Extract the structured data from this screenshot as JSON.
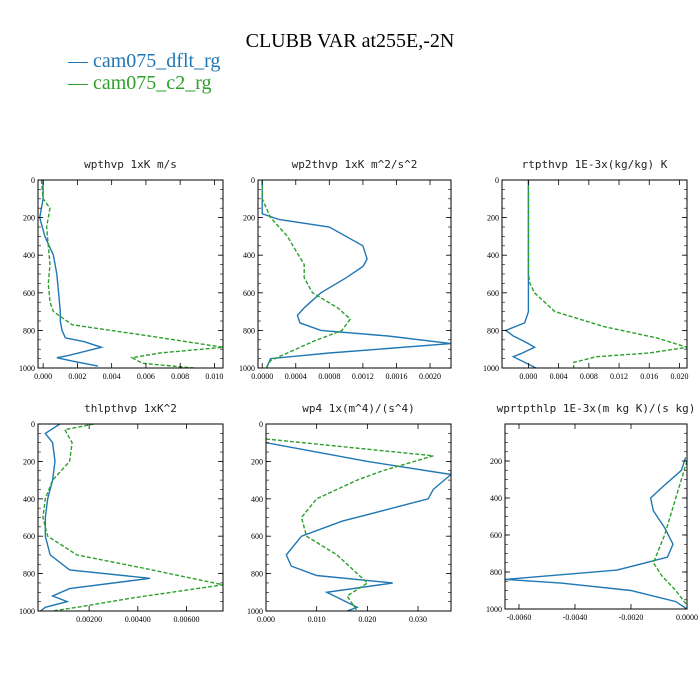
{
  "title": "CLUBB VAR at255E,-2N",
  "legend": [
    {
      "label": "— cam075_dflt_rg",
      "color": "#1f77b4"
    },
    {
      "label": "— cam075_c2_rg",
      "color": "#2ca02c"
    }
  ],
  "chart_data": [
    {
      "type": "line",
      "title": "wpthvp  1xK m/s",
      "xlim": [
        -0.0003,
        0.0105
      ],
      "ylim": [
        1000,
        0
      ],
      "xticks": [
        0.0,
        0.002,
        0.004,
        0.006,
        0.008,
        0.01
      ],
      "xticklabels": [
        "0.000",
        "0.002",
        "0.004",
        "0.006",
        "0.008",
        "0.010"
      ],
      "yticks": [
        0,
        200,
        400,
        600,
        800,
        1000
      ],
      "yticklabels": [
        "0",
        "200",
        "400",
        "600",
        "800",
        "1000"
      ],
      "series": [
        {
          "name": "cam075_dflt_rg",
          "color": "#1f77b4",
          "dash": "",
          "x": [
            0.0,
            0.0,
            -0.0002,
            0.0001,
            0.0006,
            0.0008,
            0.0009,
            0.001,
            0.001,
            0.0011,
            0.0013,
            0.0024,
            0.0034,
            0.0014,
            0.0008,
            0.0018,
            0.0032
          ],
          "y": [
            0,
            100,
            200,
            300,
            400,
            500,
            600,
            700,
            750,
            800,
            840,
            860,
            890,
            935,
            945,
            965,
            990
          ]
        },
        {
          "name": "cam075_c2_rg",
          "color": "#2ca02c",
          "dash": "4,2",
          "x": [
            -0.0001,
            0.0,
            0.0004,
            0.0002,
            0.0003,
            0.0004,
            0.0003,
            0.0004,
            0.0006,
            0.0017,
            0.0062,
            0.0105,
            0.0068,
            0.0052,
            0.0058,
            0.0088
          ],
          "y": [
            0,
            100,
            150,
            250,
            350,
            450,
            550,
            650,
            700,
            770,
            830,
            890,
            920,
            945,
            975,
            1000
          ]
        }
      ]
    },
    {
      "type": "line",
      "title": "wp2thvp  1xK m^2/s^2",
      "xlim": [
        -5e-05,
        0.00225
      ],
      "ylim": [
        1000,
        0
      ],
      "xticks": [
        0.0,
        0.0004,
        0.0008,
        0.0012,
        0.0016,
        0.002
      ],
      "xticklabels": [
        "0.0000",
        "0.0004",
        "0.0008",
        "0.0012",
        "0.0016",
        "0.0020"
      ],
      "yticks": [
        0,
        200,
        400,
        600,
        800,
        1000
      ],
      "yticklabels": [
        "0",
        "200",
        "400",
        "600",
        "800",
        "1000"
      ],
      "series": [
        {
          "name": "cam075_dflt_rg",
          "color": "#1f77b4",
          "dash": "",
          "x": [
            0.0,
            0.0,
            0.0,
            0.0,
            0.0002,
            0.0008,
            0.0012,
            0.00125,
            0.0012,
            0.001,
            0.0007,
            0.0005,
            0.00042,
            0.00045,
            0.0007,
            0.0015,
            0.00225,
            0.0008,
            0.0001,
            5e-05
          ],
          "y": [
            0,
            100,
            150,
            180,
            210,
            250,
            350,
            420,
            460,
            520,
            600,
            680,
            720,
            760,
            800,
            830,
            870,
            920,
            950,
            1000
          ]
        },
        {
          "name": "cam075_c2_rg",
          "color": "#2ca02c",
          "dash": "4,2",
          "x": [
            0.0,
            0.0,
            5e-05,
            0.0001,
            0.0003,
            0.0005,
            0.0005,
            0.0006,
            0.0009,
            0.00105,
            0.00095,
            0.0006,
            0.0003,
            0.0001,
            5e-05
          ],
          "y": [
            0,
            100,
            150,
            200,
            300,
            450,
            520,
            600,
            680,
            740,
            800,
            860,
            920,
            960,
            1000
          ]
        }
      ]
    },
    {
      "type": "line",
      "title": "rtpthvp  1E-3x(kg/kg) K",
      "xlim": [
        -0.0035,
        0.021
      ],
      "ylim": [
        1000,
        0
      ],
      "xticks": [
        0.0,
        0.004,
        0.008,
        0.012,
        0.016,
        0.02
      ],
      "xticklabels": [
        "0.000",
        "0.004",
        "0.008",
        "0.012",
        "0.016",
        "0.020"
      ],
      "yticks": [
        0,
        200,
        400,
        600,
        800,
        1000
      ],
      "yticklabels": [
        "0",
        "200",
        "400",
        "600",
        "800",
        "1000"
      ],
      "series": [
        {
          "name": "cam075_dflt_rg",
          "color": "#1f77b4",
          "dash": "",
          "x": [
            0.0,
            0.0,
            0.0,
            0.0,
            0.0,
            -0.0005,
            -0.003,
            -0.002,
            -0.001,
            0.0,
            0.0008,
            -0.0008,
            -0.002,
            0.001
          ],
          "y": [
            0,
            100,
            300,
            500,
            700,
            760,
            800,
            830,
            850,
            870,
            890,
            920,
            940,
            1000
          ]
        },
        {
          "name": "cam075_c2_rg",
          "color": "#2ca02c",
          "dash": "4,2",
          "x": [
            0.0,
            0.0,
            0.0,
            0.0,
            0.0002,
            0.0008,
            0.0035,
            0.01,
            0.017,
            0.021,
            0.016,
            0.009,
            0.006,
            0.006
          ],
          "y": [
            0,
            200,
            400,
            500,
            550,
            600,
            700,
            780,
            840,
            890,
            920,
            940,
            970,
            1000
          ]
        }
      ]
    },
    {
      "type": "line",
      "title": "thlpthvp  1xK^2",
      "xlim": [
        -0.0001,
        0.0075
      ],
      "ylim": [
        1000,
        0
      ],
      "xticks": [
        0.002,
        0.004,
        0.006
      ],
      "xticklabels": [
        "0.00200",
        "0.00400",
        "0.00600"
      ],
      "yticks": [
        0,
        200,
        400,
        600,
        800,
        1000
      ],
      "yticklabels": [
        "0",
        "200",
        "400",
        "600",
        "800",
        "1000"
      ],
      "series": [
        {
          "name": "cam075_dflt_rg",
          "color": "#1f77b4",
          "dash": "",
          "x": [
            0.0008,
            0.0002,
            0.0005,
            0.0006,
            0.0005,
            0.0003,
            0.0002,
            0.0002,
            0.0004,
            0.0012,
            0.0045,
            0.0012,
            0.0005,
            0.0011,
            0.0002,
            0.0
          ],
          "y": [
            0,
            50,
            100,
            200,
            300,
            400,
            500,
            600,
            700,
            780,
            825,
            880,
            920,
            950,
            980,
            1000
          ]
        },
        {
          "name": "cam075_c2_rg",
          "color": "#2ca02c",
          "dash": "4,2",
          "x": [
            0.0022,
            0.001,
            0.0013,
            0.0012,
            0.0005,
            0.0002,
            0.0001,
            0.0003,
            0.0015,
            0.0042,
            0.0075,
            0.0038,
            0.0015,
            0.0005
          ],
          "y": [
            0,
            30,
            100,
            200,
            300,
            400,
            500,
            600,
            700,
            770,
            860,
            930,
            980,
            1000
          ]
        }
      ]
    },
    {
      "type": "line",
      "title": "wp4  1x(m^4)/(s^4)",
      "xlim": [
        0.0,
        0.0365
      ],
      "ylim": [
        1000,
        0
      ],
      "xticks": [
        0.0,
        0.01,
        0.02,
        0.03
      ],
      "xticklabels": [
        "0.000",
        "0.010",
        "0.020",
        "0.030"
      ],
      "yticks": [
        0,
        200,
        400,
        600,
        800,
        1000
      ],
      "yticklabels": [
        "0",
        "200",
        "400",
        "600",
        "800",
        "1000"
      ],
      "series": [
        {
          "name": "cam075_dflt_rg",
          "color": "#1f77b4",
          "dash": "",
          "x": [
            0.0,
            0.02,
            0.0365,
            0.033,
            0.032,
            0.025,
            0.015,
            0.007,
            0.004,
            0.005,
            0.01,
            0.025,
            0.012,
            0.018,
            0.016
          ],
          "y": [
            100,
            200,
            270,
            350,
            400,
            450,
            520,
            600,
            700,
            760,
            810,
            850,
            900,
            980,
            1000
          ]
        },
        {
          "name": "cam075_c2_rg",
          "color": "#2ca02c",
          "dash": "4,2",
          "x": [
            0.0,
            0.033,
            0.023,
            0.018,
            0.01,
            0.007,
            0.008,
            0.014,
            0.02,
            0.016,
            0.018
          ],
          "y": [
            80,
            170,
            250,
            300,
            400,
            500,
            600,
            700,
            850,
            920,
            1000
          ]
        }
      ]
    },
    {
      "type": "line",
      "title": "wprtpthlp  1E-3x(m kg K)/(s kg)",
      "xlim": [
        -0.0065,
        0.0
      ],
      "ylim": [
        1000,
        0
      ],
      "xticks": [
        -0.006,
        -0.004,
        -0.002,
        0.0
      ],
      "xticklabels": [
        "-0.0060",
        "-0.0040",
        "-0.0020",
        "0.0000"
      ],
      "yticks": [
        200,
        400,
        600,
        800,
        1000
      ],
      "yticklabels": [
        "200",
        "400",
        "600",
        "800",
        "1000"
      ],
      "series": [
        {
          "name": "cam075_dflt_rg",
          "color": "#1f77b4",
          "dash": "",
          "x": [
            -5e-05,
            -0.0002,
            -0.0008,
            -0.0013,
            -0.0012,
            -0.0008,
            -0.0005,
            -0.0007,
            -0.0025,
            -0.0065,
            -0.0045,
            -0.002,
            -0.0004,
            0.0
          ],
          "y": [
            180,
            250,
            330,
            400,
            470,
            560,
            650,
            720,
            790,
            840,
            860,
            900,
            960,
            1000
          ]
        },
        {
          "name": "cam075_c2_rg",
          "color": "#2ca02c",
          "dash": "4,2",
          "x": [
            0.0,
            -0.0002,
            -0.0004,
            -0.0006,
            -0.0008,
            -0.0012,
            -0.0009,
            -0.0004,
            0.0
          ],
          "y": [
            200,
            300,
            400,
            500,
            600,
            750,
            820,
            900,
            980
          ]
        }
      ]
    }
  ]
}
